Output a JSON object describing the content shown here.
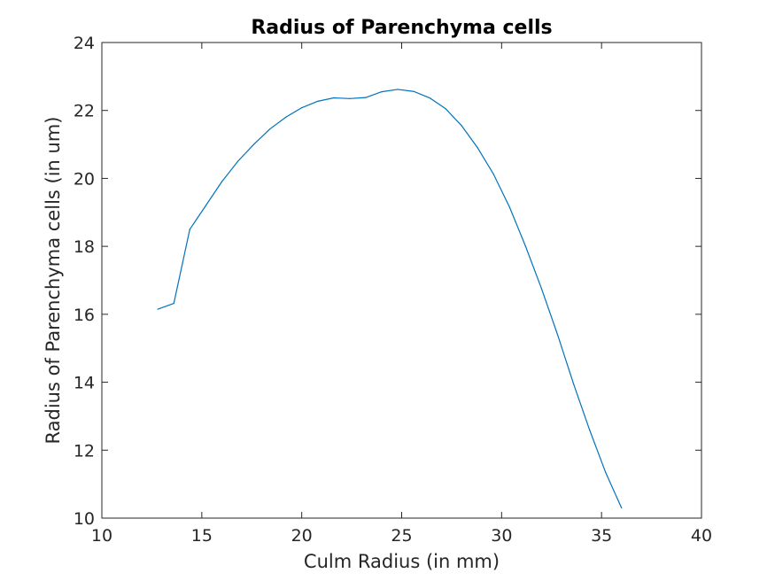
{
  "chart_data": {
    "type": "line",
    "title": "Radius of Parenchyma cells",
    "xlabel": "Culm Radius (in mm)",
    "ylabel": "Radius of Parenchyma cells (in um)",
    "xlim": [
      10,
      40
    ],
    "ylim": [
      10,
      24
    ],
    "xticks": [
      10,
      15,
      20,
      25,
      30,
      35,
      40
    ],
    "yticks": [
      10,
      12,
      14,
      16,
      18,
      20,
      22,
      24
    ],
    "grid": false,
    "legend": "none",
    "series": [
      {
        "color": "#0072bd",
        "x": [
          12.8,
          13.6,
          14.4,
          15.2,
          16.0,
          16.8,
          17.6,
          18.4,
          19.2,
          20.0,
          20.8,
          21.6,
          22.4,
          23.2,
          24.0,
          24.8,
          25.6,
          26.4,
          27.2,
          28.0,
          28.8,
          29.6,
          30.4,
          31.2,
          32.0,
          32.8,
          33.6,
          34.4,
          35.2,
          36.0
        ],
        "y": [
          16.15,
          16.32,
          18.5,
          19.2,
          19.9,
          20.5,
          21.0,
          21.45,
          21.8,
          22.08,
          22.27,
          22.37,
          22.35,
          22.38,
          22.55,
          22.62,
          22.56,
          22.37,
          22.05,
          21.55,
          20.9,
          20.12,
          19.15,
          18.0,
          16.75,
          15.4,
          13.95,
          12.6,
          11.35,
          10.3
        ]
      }
    ]
  }
}
